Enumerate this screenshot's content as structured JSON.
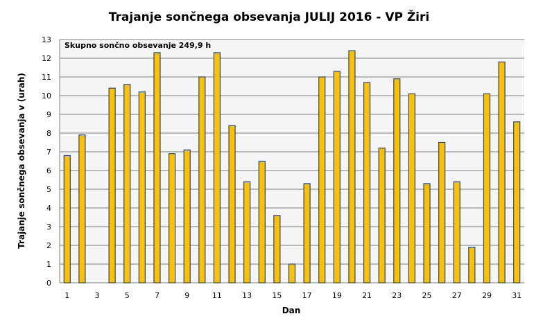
{
  "chart_data": {
    "type": "bar",
    "title": "Trajanje  sončnega obsevanja  JULIJ 2016 - VP Žiri",
    "xlabel": "Dan",
    "ylabel": "Trajanje  sončnega obsevanja  v (urah)",
    "annotation": "Skupno sončno obsevanje  249,9 h",
    "ylim": [
      0,
      13
    ],
    "yticks": [
      0,
      1,
      2,
      3,
      4,
      5,
      6,
      7,
      8,
      9,
      10,
      11,
      12,
      13
    ],
    "categories": [
      1,
      2,
      3,
      4,
      5,
      6,
      7,
      8,
      9,
      10,
      11,
      12,
      13,
      14,
      15,
      16,
      17,
      18,
      19,
      20,
      21,
      22,
      23,
      24,
      25,
      26,
      27,
      28,
      29,
      30,
      31
    ],
    "xtick_labels": [
      "1",
      "3",
      "5",
      "7",
      "9",
      "11",
      "13",
      "15",
      "17",
      "19",
      "21",
      "23",
      "25",
      "27",
      "29",
      "31"
    ],
    "values": [
      6.8,
      7.9,
      0,
      10.4,
      10.6,
      10.2,
      12.3,
      6.9,
      7.1,
      11.0,
      12.3,
      8.4,
      5.4,
      6.5,
      3.6,
      1.0,
      5.3,
      11.0,
      11.3,
      12.4,
      10.7,
      7.2,
      10.9,
      10.1,
      5.3,
      7.5,
      5.4,
      1.9,
      10.1,
      11.8,
      8.6
    ],
    "grid": true,
    "colors": {
      "bar_fill": "#FFC000",
      "bar_stroke": "#1F497D",
      "plot_bg": "#F5F5F5",
      "grid": "#808080"
    }
  }
}
